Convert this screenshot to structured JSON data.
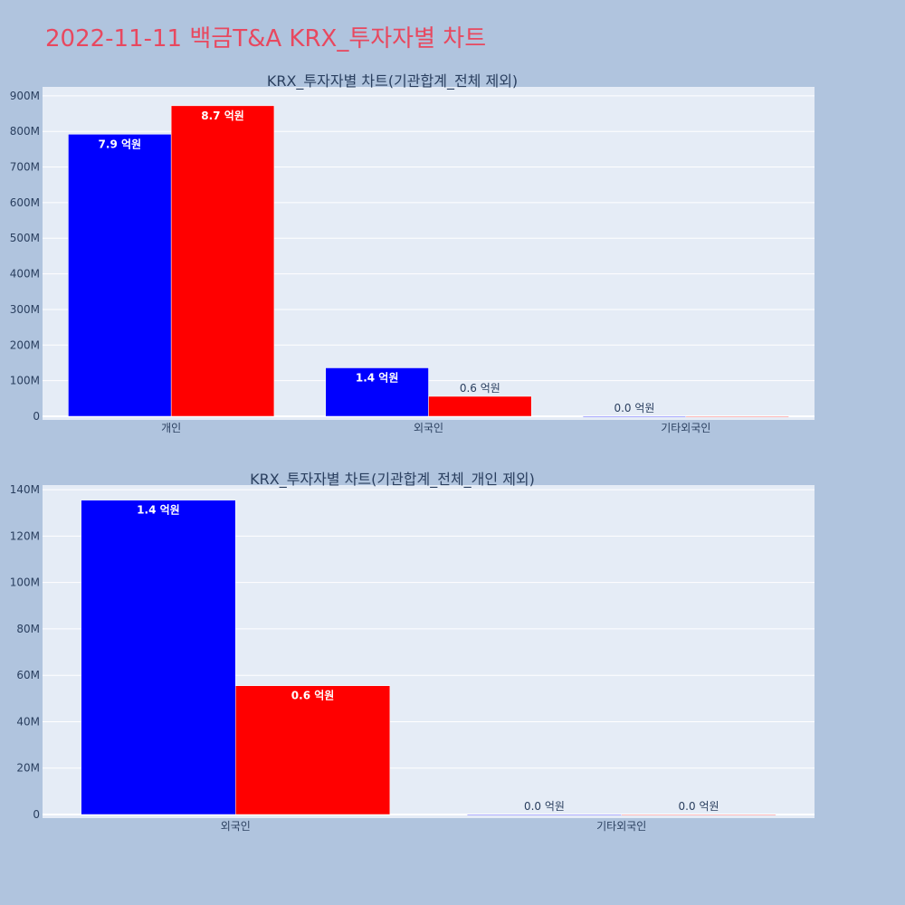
{
  "page_title": "2022-11-11 백금T&A KRX_투자자별 차트",
  "chart_data": [
    {
      "type": "bar",
      "title": "KRX_투자자별 차트(기관합계_전체 제외)",
      "categories": [
        "개인",
        "외국인",
        "기타외국인"
      ],
      "y_ticks": [
        "0",
        "100M",
        "200M",
        "300M",
        "400M",
        "500M",
        "600M",
        "700M",
        "800M",
        "900M"
      ],
      "y_tick_values": [
        0,
        100000000,
        200000000,
        300000000,
        400000000,
        500000000,
        600000000,
        700000000,
        800000000,
        900000000
      ],
      "ylim": [
        0,
        925000000
      ],
      "grid": true,
      "colors": [
        "#0000ff",
        "#ff0000"
      ],
      "series": [
        {
          "values": [
            792000000,
            136000000,
            500000
          ],
          "labels": [
            "7.9 억원",
            "1.4 억원",
            "0.0 억원"
          ]
        },
        {
          "values": [
            872000000,
            56000000,
            0
          ],
          "labels": [
            "8.7 억원",
            "0.6 억원",
            ""
          ]
        }
      ]
    },
    {
      "type": "bar",
      "title": "KRX_투자자별 차트(기관합계_전체_개인 제외)",
      "categories": [
        "외국인",
        "기타외국인"
      ],
      "y_ticks": [
        "0",
        "20M",
        "40M",
        "60M",
        "80M",
        "100M",
        "120M",
        "140M"
      ],
      "y_tick_values": [
        0,
        20000000,
        40000000,
        60000000,
        80000000,
        100000000,
        120000000,
        140000000
      ],
      "ylim": [
        0,
        142000000
      ],
      "grid": true,
      "colors": [
        "#0000ff",
        "#ff0000"
      ],
      "series": [
        {
          "values": [
            135500000,
            90000
          ],
          "labels": [
            "1.4 억원",
            "0.0 억원"
          ]
        },
        {
          "values": [
            55500000,
            0
          ],
          "labels": [
            "0.6 억원",
            "0.0 억원"
          ]
        }
      ]
    }
  ]
}
